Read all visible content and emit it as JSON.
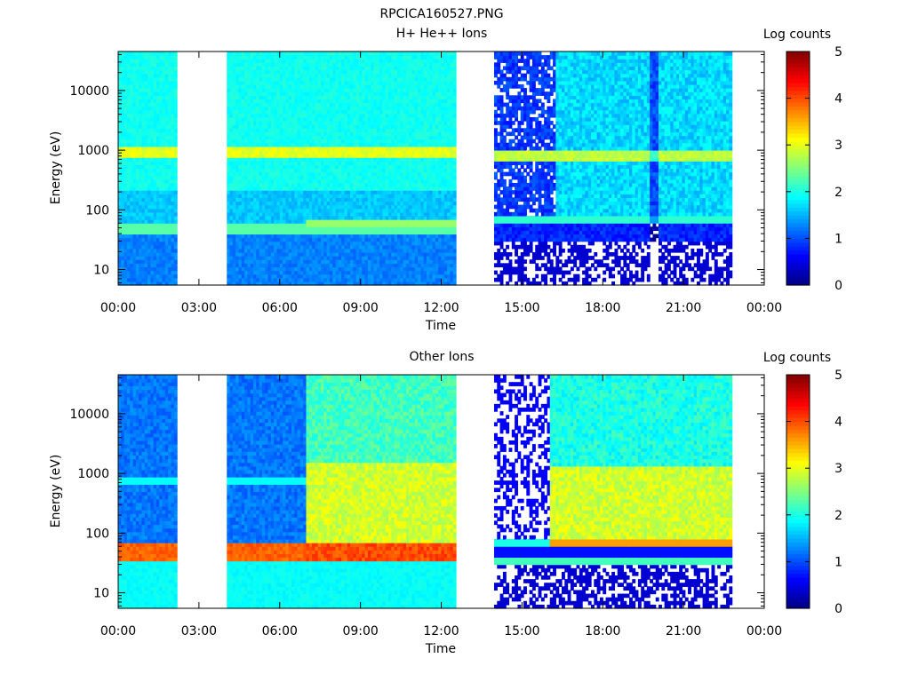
{
  "page_title": "RPCICA160527.PNG",
  "chart_data": [
    {
      "type": "heatmap",
      "title": "H+ He++ Ions",
      "xlabel": "Time",
      "ylabel": "Energy (eV)",
      "x_ticks": [
        "00:00",
        "03:00",
        "06:00",
        "09:00",
        "12:00",
        "15:00",
        "18:00",
        "21:00",
        "00:00"
      ],
      "xlim_hours": [
        0,
        24
      ],
      "y_scale": "log",
      "ylim": [
        5.5,
        45000
      ],
      "y_ticks": [
        10,
        100,
        1000,
        10000
      ],
      "y_tick_labels": [
        "10",
        "100",
        "1000",
        "10000"
      ],
      "colorbar": {
        "label": "Log counts",
        "range": [
          0,
          5
        ],
        "ticks": [
          "0",
          "1",
          "2",
          "3",
          "4",
          "5"
        ],
        "colormap": "jet"
      },
      "data_gaps_hours": [
        [
          2.2,
          4.05
        ],
        [
          12.5,
          14.0
        ],
        [
          22.85,
          24.0
        ]
      ],
      "features": [
        {
          "start_h": 0,
          "end_h": 2.2,
          "band_energy_eV": 850,
          "band_level": 3.0,
          "low_energy_band_eV": 50
        },
        {
          "start_h": 4.05,
          "end_h": 12.5,
          "band_energy_eV": 800,
          "band_level": 3.0,
          "low_energy_band_eV": 50
        },
        {
          "start_h": 14.0,
          "end_h": 22.85,
          "band_energy_eV": 800,
          "band_level": 2.9,
          "low_energy_band_eV": 70
        }
      ]
    },
    {
      "type": "heatmap",
      "title": "Other Ions",
      "xlabel": "Time",
      "ylabel": "Energy (eV)",
      "x_ticks": [
        "00:00",
        "03:00",
        "06:00",
        "09:00",
        "12:00",
        "15:00",
        "18:00",
        "21:00",
        "00:00"
      ],
      "xlim_hours": [
        0,
        24
      ],
      "y_scale": "log",
      "ylim": [
        5.5,
        45000
      ],
      "y_ticks": [
        10,
        100,
        1000,
        10000
      ],
      "y_tick_labels": [
        "10",
        "100",
        "1000",
        "10000"
      ],
      "colorbar": {
        "label": "Log counts",
        "range": [
          0,
          5
        ],
        "ticks": [
          "0",
          "1",
          "2",
          "3",
          "4",
          "5"
        ],
        "colormap": "jet"
      },
      "data_gaps_hours": [
        [
          2.2,
          4.05
        ],
        [
          12.5,
          14.0
        ],
        [
          22.85,
          24.0
        ]
      ],
      "features": [
        {
          "start_h": 0,
          "end_h": 7.0,
          "band_energy_eV": 45,
          "band_level": 4.0
        },
        {
          "start_h": 7.0,
          "end_h": 12.5,
          "band_energy_eV": 55,
          "band_level": 4.1
        },
        {
          "start_h": 16.0,
          "end_h": 22.85,
          "band_energy_eV": 70,
          "band_level": 3.6
        }
      ]
    }
  ]
}
